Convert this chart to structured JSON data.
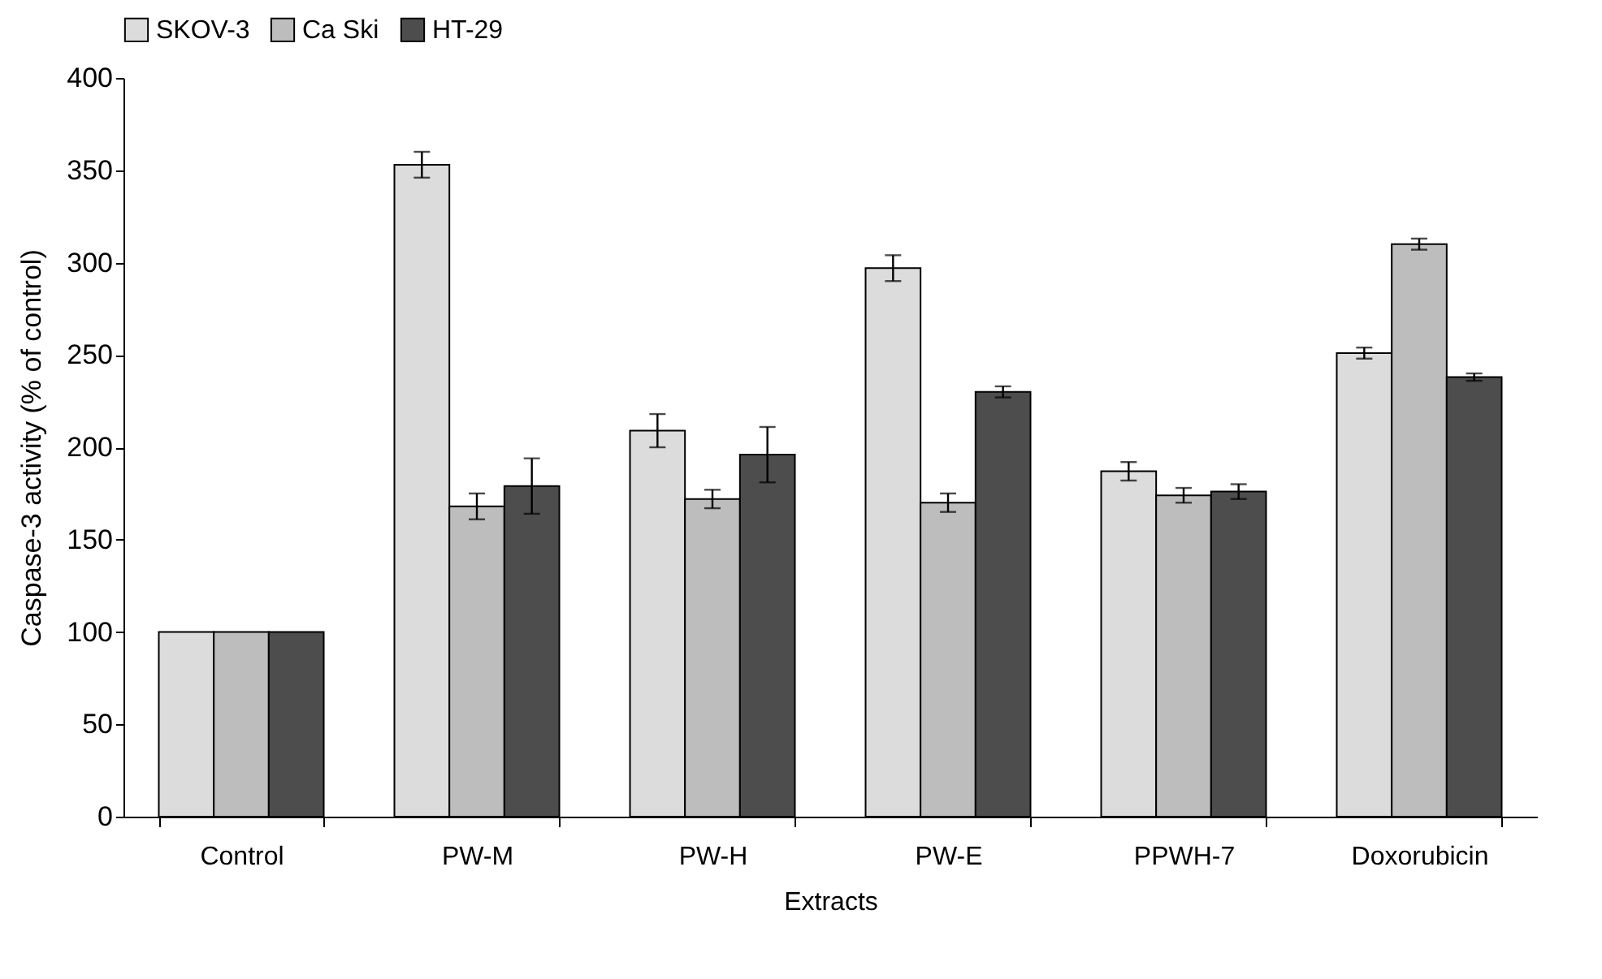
{
  "chart_data": {
    "type": "bar",
    "xlabel": "Extracts",
    "ylabel": "Caspase-3 activity (% of control)",
    "categories": [
      "Control",
      "PW-M",
      "PW-H",
      "PW-E",
      "PPWH-7",
      "Doxorubicin"
    ],
    "series": [
      {
        "name": "SKOV-3",
        "color": "#dcdcdc",
        "values": [
          100,
          353,
          209,
          297,
          187,
          251
        ],
        "errors": [
          null,
          7,
          9,
          7,
          5,
          3
        ]
      },
      {
        "name": "Ca Ski",
        "color": "#bdbdbd",
        "values": [
          100,
          168,
          172,
          170,
          174,
          310
        ],
        "errors": [
          null,
          7,
          5,
          5,
          4,
          3
        ]
      },
      {
        "name": "HT-29",
        "color": "#4d4d4d",
        "values": [
          100,
          179,
          196,
          230,
          176,
          238
        ],
        "errors": [
          null,
          15,
          15,
          3,
          4,
          2
        ]
      }
    ],
    "ylim": [
      0,
      400
    ],
    "yticks": [
      0,
      50,
      100,
      150,
      200,
      250,
      300,
      350,
      400
    ],
    "grid": false,
    "legend": "top"
  }
}
